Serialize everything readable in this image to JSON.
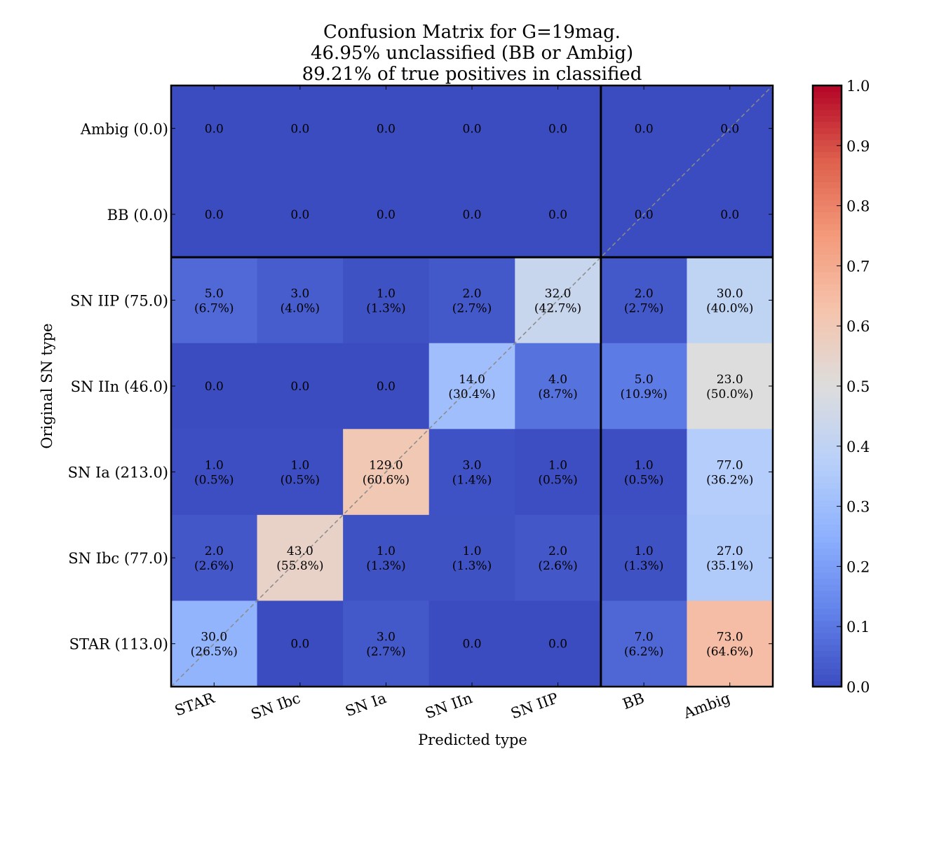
{
  "chart_data": {
    "type": "heatmap",
    "title_lines": [
      "Confusion Matrix for G=19mag.",
      "46.95% unclassified (BB or Ambig)",
      "89.21% of true positives in classified"
    ],
    "xlabel": "Predicted type",
    "ylabel": "Original SN type",
    "x_categories": [
      "STAR",
      "SN Ibc",
      "SN Ia",
      "SN IIn",
      "SN IIP",
      "BB",
      "Ambig"
    ],
    "y_categories": [
      "Ambig (0.0)",
      "BB (0.0)",
      "SN IIP (75.0)",
      "SN IIn (46.0)",
      "SN Ia (213.0)",
      "SN Ibc (77.0)",
      "STAR (113.0)"
    ],
    "counts": [
      [
        0.0,
        0.0,
        0.0,
        0.0,
        0.0,
        0.0,
        0.0
      ],
      [
        0.0,
        0.0,
        0.0,
        0.0,
        0.0,
        0.0,
        0.0
      ],
      [
        5.0,
        3.0,
        1.0,
        2.0,
        32.0,
        2.0,
        30.0
      ],
      [
        0.0,
        0.0,
        0.0,
        14.0,
        4.0,
        5.0,
        23.0
      ],
      [
        1.0,
        1.0,
        129.0,
        3.0,
        1.0,
        1.0,
        77.0
      ],
      [
        2.0,
        43.0,
        1.0,
        1.0,
        2.0,
        1.0,
        27.0
      ],
      [
        30.0,
        0.0,
        3.0,
        0.0,
        0.0,
        7.0,
        73.0
      ]
    ],
    "cell_labels": [
      [
        "0.0",
        "0.0",
        "0.0",
        "0.0",
        "0.0",
        "0.0",
        "0.0"
      ],
      [
        "0.0",
        "0.0",
        "0.0",
        "0.0",
        "0.0",
        "0.0",
        "0.0"
      ],
      [
        "5.0\n(6.7%)",
        "3.0\n(4.0%)",
        "1.0\n(1.3%)",
        "2.0\n(2.7%)",
        "32.0\n(42.7%)",
        "2.0\n(2.7%)",
        "30.0\n(40.0%)"
      ],
      [
        "0.0",
        "0.0",
        "0.0",
        "14.0\n(30.4%)",
        "4.0\n(8.7%)",
        "5.0\n(10.9%)",
        "23.0\n(50.0%)"
      ],
      [
        "1.0\n(0.5%)",
        "1.0\n(0.5%)",
        "129.0\n(60.6%)",
        "3.0\n(1.4%)",
        "1.0\n(0.5%)",
        "1.0\n(0.5%)",
        "77.0\n(36.2%)"
      ],
      [
        "2.0\n(2.6%)",
        "43.0\n(55.8%)",
        "1.0\n(1.3%)",
        "1.0\n(1.3%)",
        "2.0\n(2.6%)",
        "1.0\n(1.3%)",
        "27.0\n(35.1%)"
      ],
      [
        "30.0\n(26.5%)",
        "0.0",
        "3.0\n(2.7%)",
        "0.0",
        "0.0",
        "7.0\n(6.2%)",
        "73.0\n(64.6%)"
      ]
    ],
    "fractions": [
      [
        0.0,
        0.0,
        0.0,
        0.0,
        0.0,
        0.0,
        0.0
      ],
      [
        0.0,
        0.0,
        0.0,
        0.0,
        0.0,
        0.0,
        0.0
      ],
      [
        0.067,
        0.04,
        0.013,
        0.027,
        0.427,
        0.027,
        0.4
      ],
      [
        0.0,
        0.0,
        0.0,
        0.304,
        0.087,
        0.109,
        0.5
      ],
      [
        0.005,
        0.005,
        0.606,
        0.014,
        0.005,
        0.005,
        0.362
      ],
      [
        0.026,
        0.558,
        0.013,
        0.013,
        0.026,
        0.013,
        0.351
      ],
      [
        0.265,
        0.0,
        0.027,
        0.0,
        0.0,
        0.062,
        0.646
      ]
    ],
    "colormap": "coolwarm",
    "colorbar": {
      "range": [
        0.0,
        1.0
      ],
      "ticks": [
        "0.0",
        "0.1",
        "0.2",
        "0.3",
        "0.4",
        "0.5",
        "0.6",
        "0.7",
        "0.8",
        "0.9",
        "1.0"
      ]
    },
    "separator_after_column": "SN IIP",
    "separator_after_row": "BB",
    "diagonal_line": true,
    "colors": {
      "diagonal": "#8a8a8a",
      "frame": "#000000",
      "text": "#000000"
    }
  }
}
